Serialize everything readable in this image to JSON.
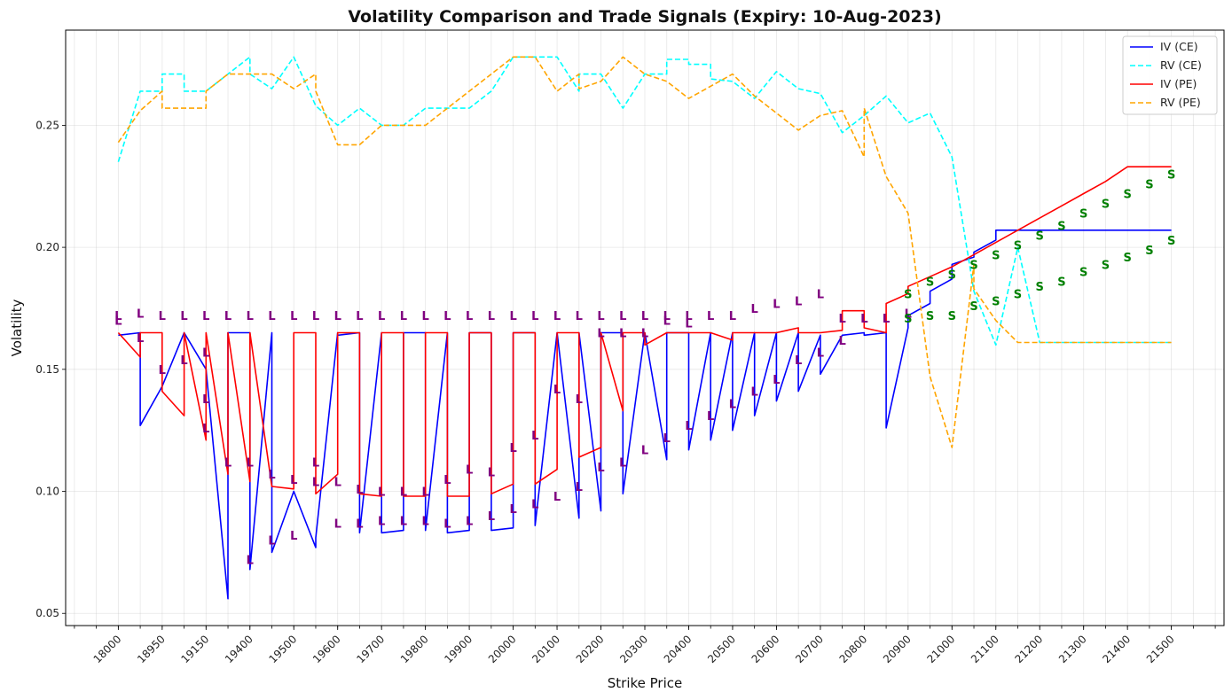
{
  "chart_data": {
    "type": "line",
    "title": "Volatility Comparison and Trade Signals (Expiry: 10-Aug-2023)",
    "xlabel": "Strike Price",
    "ylabel": "Volatility",
    "ylim": [
      0.045,
      0.289
    ],
    "yticks": [
      "0.05",
      "0.10",
      "0.15",
      "0.20",
      "0.25"
    ],
    "ytick_values": [
      0.05,
      0.1,
      0.15,
      0.2,
      0.25
    ],
    "x_count": 49,
    "x_positions": [
      0,
      49.8
    ],
    "xticks": [
      "18000",
      "18950",
      "19150",
      "19400",
      "19500",
      "19600",
      "19700",
      "19800",
      "19900",
      "20000",
      "20100",
      "20200",
      "20300",
      "20400",
      "20500",
      "20600",
      "20700",
      "20800",
      "20900",
      "21000",
      "21100",
      "21200",
      "21300",
      "21400",
      "21500"
    ],
    "grid": true,
    "legend_position": "top-right",
    "colors": {
      "iv_ce": "#0000ff",
      "rv_ce": "#00ffff",
      "iv_pe": "#ff0000",
      "rv_pe": "#ffa500",
      "signal_long": "#800080",
      "signal_short": "#008000"
    },
    "series": [
      {
        "name": "IV (CE)",
        "style": "solid",
        "color": "#0000ff",
        "x": [
          0,
          1,
          1,
          2,
          3,
          4,
          5,
          5,
          6,
          6,
          7,
          7,
          8,
          9,
          9,
          10,
          10,
          11,
          11,
          12,
          12,
          13,
          13,
          14,
          14,
          15,
          15,
          16,
          16,
          17,
          17,
          18,
          18,
          19,
          19,
          20,
          20,
          21,
          21,
          22,
          22,
          23,
          23,
          24,
          24,
          25,
          25,
          26,
          26,
          27,
          27,
          28,
          28,
          29,
          29,
          30,
          30,
          31,
          31,
          32,
          32,
          33,
          33,
          34,
          34,
          35,
          35,
          36,
          36,
          37,
          37,
          38,
          38,
          39,
          39,
          40,
          40,
          41,
          42,
          43,
          44,
          45,
          46,
          47,
          48
        ],
        "y": [
          0.164,
          0.165,
          0.127,
          0.143,
          0.165,
          0.15,
          0.056,
          0.165,
          0.165,
          0.068,
          0.165,
          0.075,
          0.1,
          0.077,
          0.081,
          0.165,
          0.164,
          0.165,
          0.083,
          0.165,
          0.083,
          0.084,
          0.165,
          0.165,
          0.084,
          0.165,
          0.083,
          0.084,
          0.165,
          0.165,
          0.084,
          0.085,
          0.165,
          0.165,
          0.086,
          0.165,
          0.165,
          0.089,
          0.165,
          0.092,
          0.165,
          0.165,
          0.099,
          0.165,
          0.165,
          0.113,
          0.165,
          0.165,
          0.117,
          0.165,
          0.121,
          0.165,
          0.125,
          0.165,
          0.131,
          0.165,
          0.137,
          0.165,
          0.141,
          0.164,
          0.148,
          0.164,
          0.164,
          0.165,
          0.164,
          0.165,
          0.126,
          0.167,
          0.172,
          0.177,
          0.182,
          0.187,
          0.193,
          0.196,
          0.198,
          0.203,
          0.207,
          0.207,
          0.207,
          0.207,
          0.207,
          0.207,
          0.207,
          0.207,
          0.207
        ]
      },
      {
        "name": "RV (CE)",
        "style": "dashed",
        "color": "#00ffff",
        "x": [
          0,
          1,
          1,
          2,
          2,
          3,
          3,
          4,
          4,
          5,
          5,
          6,
          6,
          7,
          7,
          8,
          9,
          9,
          10,
          10,
          11,
          12,
          13,
          13,
          14,
          15,
          16,
          17,
          18,
          19,
          20,
          21,
          21,
          22,
          23,
          23,
          24,
          25,
          25,
          26,
          26,
          27,
          27,
          28,
          29,
          29,
          30,
          31,
          31,
          32,
          32,
          33,
          34,
          34,
          35,
          36,
          36,
          37,
          38,
          38,
          39,
          40,
          41,
          42,
          43,
          44,
          45,
          46,
          47,
          48
        ],
        "y": [
          0.235,
          0.264,
          0.264,
          0.264,
          0.271,
          0.271,
          0.264,
          0.264,
          0.264,
          0.271,
          0.271,
          0.278,
          0.271,
          0.265,
          0.265,
          0.278,
          0.258,
          0.258,
          0.25,
          0.25,
          0.257,
          0.25,
          0.25,
          0.25,
          0.257,
          0.257,
          0.257,
          0.264,
          0.278,
          0.278,
          0.278,
          0.264,
          0.271,
          0.271,
          0.257,
          0.257,
          0.271,
          0.271,
          0.277,
          0.277,
          0.275,
          0.275,
          0.269,
          0.268,
          0.261,
          0.261,
          0.272,
          0.265,
          0.265,
          0.263,
          0.263,
          0.247,
          0.254,
          0.254,
          0.262,
          0.251,
          0.251,
          0.255,
          0.237,
          0.237,
          0.182,
          0.16,
          0.2,
          0.161,
          0.161,
          0.161,
          0.161,
          0.161,
          0.161,
          0.161
        ]
      },
      {
        "name": "IV (PE)",
        "style": "solid",
        "color": "#ff0000",
        "x": [
          0,
          1,
          1,
          2,
          2,
          3,
          3,
          4,
          4,
          5,
          5,
          6,
          6,
          7,
          7,
          8,
          8,
          9,
          9,
          10,
          10,
          11,
          11,
          12,
          12,
          13,
          13,
          14,
          14,
          15,
          15,
          16,
          16,
          17,
          17,
          18,
          18,
          19,
          19,
          20,
          20,
          21,
          21,
          22,
          22,
          23,
          23,
          24,
          24,
          25,
          25,
          26,
          26,
          27,
          27,
          28,
          28,
          29,
          29,
          30,
          30,
          31,
          31,
          32,
          32,
          33,
          33,
          34,
          34,
          35,
          35,
          36,
          36,
          37,
          38,
          39,
          40,
          41,
          42,
          43,
          44,
          45,
          46,
          47,
          48
        ],
        "y": [
          0.165,
          0.155,
          0.165,
          0.165,
          0.141,
          0.131,
          0.165,
          0.121,
          0.165,
          0.107,
          0.165,
          0.104,
          0.165,
          0.102,
          0.102,
          0.101,
          0.165,
          0.165,
          0.099,
          0.107,
          0.165,
          0.165,
          0.099,
          0.098,
          0.165,
          0.165,
          0.098,
          0.098,
          0.165,
          0.165,
          0.098,
          0.098,
          0.165,
          0.165,
          0.099,
          0.103,
          0.165,
          0.165,
          0.103,
          0.109,
          0.165,
          0.165,
          0.114,
          0.118,
          0.165,
          0.133,
          0.165,
          0.165,
          0.16,
          0.165,
          0.165,
          0.165,
          0.165,
          0.165,
          0.165,
          0.162,
          0.165,
          0.165,
          0.165,
          0.165,
          0.165,
          0.167,
          0.165,
          0.165,
          0.165,
          0.166,
          0.174,
          0.174,
          0.167,
          0.165,
          0.177,
          0.181,
          0.184,
          0.188,
          0.192,
          0.197,
          0.202,
          0.207,
          0.212,
          0.217,
          0.222,
          0.227,
          0.233,
          0.233,
          0.233
        ]
      },
      {
        "name": "RV (PE)",
        "style": "dashed",
        "color": "#ffa500",
        "x": [
          0,
          1,
          2,
          2,
          3,
          4,
          4,
          5,
          6,
          7,
          8,
          9,
          9,
          10,
          11,
          12,
          13,
          14,
          15,
          16,
          17,
          18,
          19,
          20,
          21,
          21,
          22,
          23,
          23,
          24,
          25,
          26,
          27,
          28,
          29,
          30,
          31,
          32,
          33,
          34,
          34,
          35,
          36,
          37,
          38,
          39,
          39,
          40,
          41,
          42,
          43,
          44,
          45,
          46,
          47,
          48
        ],
        "y": [
          0.243,
          0.256,
          0.264,
          0.257,
          0.257,
          0.257,
          0.264,
          0.271,
          0.271,
          0.271,
          0.265,
          0.271,
          0.264,
          0.242,
          0.242,
          0.25,
          0.25,
          0.25,
          0.257,
          0.264,
          0.271,
          0.278,
          0.278,
          0.264,
          0.271,
          0.265,
          0.268,
          0.278,
          0.278,
          0.271,
          0.268,
          0.261,
          0.266,
          0.271,
          0.262,
          0.255,
          0.248,
          0.254,
          0.256,
          0.237,
          0.257,
          0.229,
          0.214,
          0.147,
          0.118,
          0.193,
          0.183,
          0.17,
          0.161,
          0.161,
          0.161,
          0.161,
          0.161,
          0.161,
          0.161,
          0.161
        ]
      }
    ],
    "signals": {
      "L": {
        "color": "#800080",
        "x": [
          0,
          0,
          1,
          1,
          2,
          2,
          3,
          3,
          4,
          4,
          4,
          4,
          5,
          5,
          6,
          6,
          6,
          7,
          7,
          7,
          8,
          8,
          8,
          9,
          9,
          9,
          10,
          10,
          10,
          11,
          11,
          11,
          12,
          12,
          12,
          13,
          13,
          13,
          14,
          14,
          14,
          15,
          15,
          15,
          16,
          16,
          16,
          17,
          17,
          17,
          18,
          18,
          18,
          19,
          19,
          19,
          20,
          20,
          20,
          21,
          21,
          21,
          22,
          22,
          22,
          23,
          23,
          23,
          24,
          24,
          24,
          25,
          25,
          25,
          26,
          26,
          26,
          27,
          27,
          28,
          28,
          29,
          29,
          30,
          30,
          31,
          31,
          32,
          32,
          33,
          33,
          34,
          34,
          35,
          35,
          36
        ],
        "y": [
          0.172,
          0.17,
          0.173,
          0.163,
          0.172,
          0.15,
          0.172,
          0.154,
          0.172,
          0.138,
          0.157,
          0.126,
          0.172,
          0.112,
          0.172,
          0.112,
          0.072,
          0.172,
          0.107,
          0.08,
          0.172,
          0.105,
          0.082,
          0.172,
          0.112,
          0.104,
          0.172,
          0.087,
          0.104,
          0.172,
          0.087,
          0.101,
          0.172,
          0.088,
          0.1,
          0.172,
          0.088,
          0.1,
          0.172,
          0.088,
          0.1,
          0.172,
          0.087,
          0.105,
          0.172,
          0.088,
          0.109,
          0.172,
          0.09,
          0.108,
          0.172,
          0.093,
          0.118,
          0.172,
          0.095,
          0.123,
          0.172,
          0.098,
          0.142,
          0.172,
          0.102,
          0.138,
          0.172,
          0.11,
          0.165,
          0.172,
          0.112,
          0.165,
          0.172,
          0.117,
          0.165,
          0.172,
          0.122,
          0.17,
          0.172,
          0.127,
          0.169,
          0.172,
          0.131,
          0.172,
          0.136,
          0.175,
          0.141,
          0.177,
          0.146,
          0.178,
          0.154,
          0.181,
          0.157,
          0.171,
          0.162,
          0.171,
          0.171,
          0.171,
          0.171,
          0.173
        ]
      },
      "S": {
        "color": "#008000",
        "x": [
          36,
          36,
          37,
          37,
          38,
          38,
          39,
          39,
          40,
          40,
          41,
          41,
          42,
          42,
          43,
          43,
          44,
          44,
          45,
          45,
          46,
          46,
          47,
          47,
          48,
          48
        ],
        "y": [
          0.171,
          0.181,
          0.172,
          0.186,
          0.172,
          0.189,
          0.176,
          0.193,
          0.178,
          0.197,
          0.181,
          0.201,
          0.184,
          0.205,
          0.186,
          0.209,
          0.19,
          0.214,
          0.193,
          0.218,
          0.196,
          0.222,
          0.199,
          0.226,
          0.203,
          0.23
        ]
      }
    }
  }
}
